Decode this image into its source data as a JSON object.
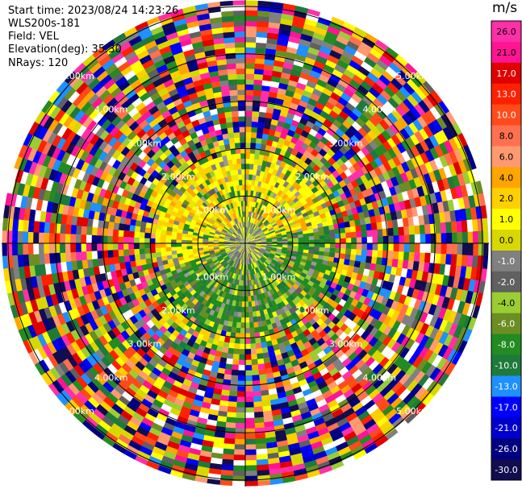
{
  "header": {
    "start_time": "Start time: 2023/08/24 14:23:26",
    "instrument": "WLS200s-181",
    "field": "Field: VEL",
    "elevation": "Elevation(deg): 35.30",
    "nrays": "NRays: 120"
  },
  "chart_data": {
    "type": "heatmap",
    "projection": "polar (PPI)",
    "n_rays": 120,
    "range_rings_km": [
      1.0,
      2.0,
      3.0,
      4.0,
      5.0
    ],
    "ring_labels": [
      "1.00km",
      "2.00km",
      "3.00km",
      "4.00km",
      "5.00km"
    ],
    "colorbar": {
      "unit": "m/s",
      "ticks": [
        "26.0",
        "21.0",
        "17.0",
        "13.0",
        "10.0",
        "8.0",
        "6.0",
        "4.0",
        "2.0",
        "1.0",
        "0.0",
        "-1.0",
        "-2.0",
        "-4.0",
        "-6.0",
        "-8.0",
        "-10.0",
        "-13.0",
        "-17.0",
        "-21.0",
        "-26.0",
        "-30.0"
      ],
      "colors": [
        "#ff2fa8",
        "#ff1493",
        "#e00000",
        "#ff2000",
        "#ff4a1a",
        "#ff7050",
        "#ff9a70",
        "#ffa500",
        "#ffd000",
        "#ffff00",
        "#d8d800",
        "#808080",
        "#606060",
        "#9acd32",
        "#6b8e23",
        "#228b22",
        "#1e7a3a",
        "#1e90ff",
        "#0000ff",
        "#0000cd",
        "#000080",
        "#120c50"
      ]
    },
    "near_field_summary": "Within about 2 km the velocities are low and coherent: positive (yellow/orange, 2 to 6 m/s) to the north-west and north, negative (green, -2 to -6 m/s) to the south and south-east; beyond about 2 km the field is noise with random colors across the full scale."
  }
}
